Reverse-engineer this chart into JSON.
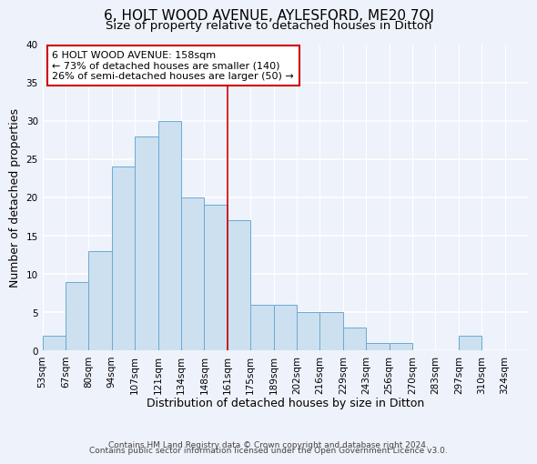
{
  "title": "6, HOLT WOOD AVENUE, AYLESFORD, ME20 7QJ",
  "subtitle": "Size of property relative to detached houses in Ditton",
  "xlabel": "Distribution of detached houses by size in Ditton",
  "ylabel": "Number of detached properties",
  "bin_labels": [
    "53sqm",
    "67sqm",
    "80sqm",
    "94sqm",
    "107sqm",
    "121sqm",
    "134sqm",
    "148sqm",
    "161sqm",
    "175sqm",
    "189sqm",
    "202sqm",
    "216sqm",
    "229sqm",
    "243sqm",
    "256sqm",
    "270sqm",
    "283sqm",
    "297sqm",
    "310sqm",
    "324sqm"
  ],
  "bar_heights": [
    2,
    9,
    13,
    24,
    28,
    30,
    20,
    19,
    17,
    6,
    6,
    5,
    5,
    3,
    1,
    1,
    0,
    0,
    2,
    0,
    0
  ],
  "bar_color": "#cce0f0",
  "bar_edge_color": "#6aaad4",
  "vline_x": 8,
  "vline_color": "#cc0000",
  "annotation_text": "6 HOLT WOOD AVENUE: 158sqm\n← 73% of detached houses are smaller (140)\n26% of semi-detached houses are larger (50) →",
  "annotation_box_color": "white",
  "annotation_box_edge_color": "#cc0000",
  "ylim": [
    0,
    40
  ],
  "yticks": [
    0,
    5,
    10,
    15,
    20,
    25,
    30,
    35,
    40
  ],
  "footer_line1": "Contains HM Land Registry data © Crown copyright and database right 2024.",
  "footer_line2": "Contains public sector information licensed under the Open Government Licence v3.0.",
  "bg_color": "#eef2fa",
  "grid_color": "white",
  "title_fontsize": 11,
  "subtitle_fontsize": 9.5,
  "axis_label_fontsize": 9,
  "tick_fontsize": 7.5,
  "footer_fontsize": 6.5,
  "annot_fontsize": 8
}
